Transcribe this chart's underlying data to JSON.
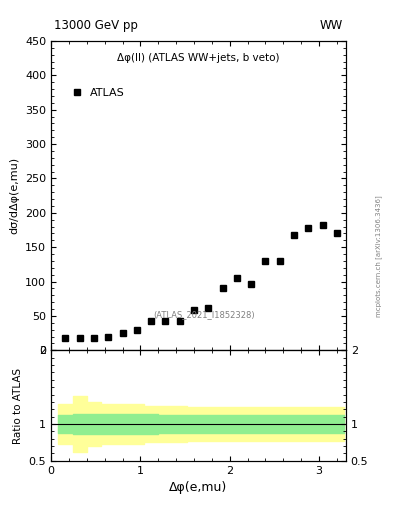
{
  "title_top": "13000 GeV pp",
  "title_right": "WW",
  "plot_title": "Δφ(ll) (ATLAS WW+jets, b veto)",
  "xlabel": "Δφ(e,mu)",
  "ylabel": "dσ/dΔφ(e,mu)",
  "ylabel_ratio": "Ratio to ATLAS",
  "legend_label": "ATLAS",
  "ref_label": "(ATLAS_2021_I1852328)",
  "data_x": [
    0.16,
    0.32,
    0.48,
    0.64,
    0.8,
    0.96,
    1.12,
    1.28,
    1.44,
    1.6,
    1.76,
    1.92,
    2.08,
    2.24,
    2.4,
    2.56,
    2.72,
    2.88,
    3.04,
    3.2
  ],
  "data_y": [
    18,
    18,
    18,
    20,
    25,
    30,
    43,
    43,
    43,
    58,
    62,
    90,
    105,
    97,
    130,
    130,
    168,
    178,
    183,
    170
  ],
  "ylim": [
    0,
    450
  ],
  "xlim": [
    0,
    3.3
  ],
  "yticks": [
    0,
    50,
    100,
    150,
    200,
    250,
    300,
    350,
    400,
    450
  ],
  "ratio_ylim": [
    0.5,
    2.0
  ],
  "ratio_yticks": [
    0.5,
    1.0,
    2.0
  ],
  "ratio_ytick_labels": [
    "0.5",
    "1",
    "2"
  ],
  "ratio_green_lo": [
    0.88,
    0.87,
    0.87,
    0.87,
    0.87,
    0.87,
    0.87,
    0.88,
    0.88,
    0.88,
    0.88,
    0.88,
    0.88,
    0.88,
    0.88,
    0.88,
    0.88,
    0.88,
    0.88,
    0.88
  ],
  "ratio_green_hi": [
    1.12,
    1.13,
    1.13,
    1.13,
    1.13,
    1.13,
    1.13,
    1.12,
    1.12,
    1.12,
    1.12,
    1.12,
    1.12,
    1.12,
    1.12,
    1.12,
    1.12,
    1.12,
    1.12,
    1.12
  ],
  "ratio_yellow_lo": [
    0.73,
    0.62,
    0.7,
    0.73,
    0.73,
    0.73,
    0.75,
    0.75,
    0.75,
    0.77,
    0.77,
    0.77,
    0.77,
    0.77,
    0.77,
    0.77,
    0.77,
    0.77,
    0.77,
    0.77
  ],
  "ratio_yellow_hi": [
    1.27,
    1.38,
    1.3,
    1.27,
    1.27,
    1.27,
    1.25,
    1.25,
    1.25,
    1.23,
    1.23,
    1.23,
    1.23,
    1.23,
    1.23,
    1.23,
    1.23,
    1.23,
    1.23,
    1.23
  ],
  "marker_color": "black",
  "marker_size": 4,
  "green_color": "#90EE90",
  "yellow_color": "#FFFF99",
  "xticks": [
    0,
    1,
    2,
    3
  ],
  "side_text": "mcplots.cern.ch [arXiv:1306.3436]",
  "side_text_fontsize": 5
}
